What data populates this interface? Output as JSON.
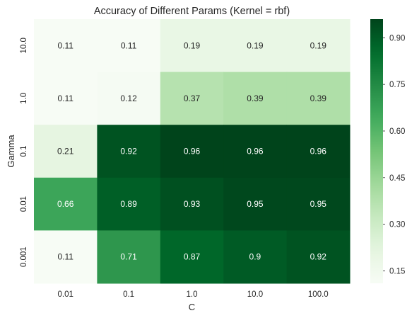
{
  "chart_data": {
    "type": "heatmap",
    "title": "Accuracy of Different Params (Kernel = rbf)",
    "xlabel": "C",
    "ylabel": "Gamma",
    "x_categories": [
      "0.01",
      "0.1",
      "1.0",
      "10.0",
      "100.0"
    ],
    "y_categories": [
      "10.0",
      "1.0",
      "0.1",
      "0.01",
      "0.001"
    ],
    "values": [
      [
        0.11,
        0.11,
        0.19,
        0.19,
        0.19
      ],
      [
        0.11,
        0.12,
        0.37,
        0.39,
        0.39
      ],
      [
        0.21,
        0.92,
        0.96,
        0.96,
        0.96
      ],
      [
        0.66,
        0.89,
        0.93,
        0.95,
        0.95
      ],
      [
        0.11,
        0.71,
        0.87,
        0.9,
        0.92
      ]
    ],
    "labels": [
      [
        "0.11",
        "0.11",
        "0.19",
        "0.19",
        "0.19"
      ],
      [
        "0.11",
        "0.12",
        "0.37",
        "0.39",
        "0.39"
      ],
      [
        "0.21",
        "0.92",
        "0.96",
        "0.96",
        "0.96"
      ],
      [
        "0.66",
        "0.89",
        "0.93",
        "0.95",
        "0.95"
      ],
      [
        "0.11",
        "0.71",
        "0.87",
        "0.9",
        "0.92"
      ]
    ],
    "colorbar": {
      "vmin": 0.11,
      "vmax": 0.96,
      "ticks": [
        0.15,
        0.3,
        0.45,
        0.6,
        0.75,
        0.9
      ],
      "tick_labels": [
        "0.15",
        "0.30",
        "0.45",
        "0.60",
        "0.75",
        "0.90"
      ]
    },
    "colormap": "Greens",
    "colormap_stops": [
      "#f7fcf5",
      "#e5f5e0",
      "#c7e9c0",
      "#a1d99b",
      "#74c476",
      "#41ab5d",
      "#238b45",
      "#006d2c",
      "#00441b"
    ]
  }
}
